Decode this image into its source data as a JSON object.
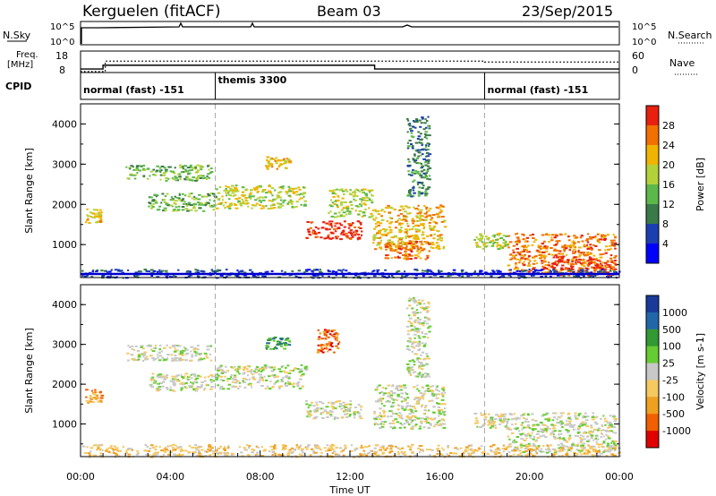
{
  "header": {
    "station": "Kerguelen (fitACF)",
    "beam": "Beam 03",
    "date": "23/Sep/2015"
  },
  "top_panels": {
    "nsky_label": "N.Sky",
    "nsky_ticks": [
      "10^5",
      "10^0"
    ],
    "nsearch_label": "N.Search",
    "nsearch_ticks": [
      "10^5",
      "10^0"
    ],
    "freq_label": "Freq.",
    "freq_unit": "[MHz]",
    "freq_ticks": [
      "18",
      "8"
    ],
    "nave_label": "Nave",
    "nave_ticks": [
      "60",
      "0"
    ],
    "cpid_label": "CPID",
    "modes": [
      {
        "text": "normal (fast) -151",
        "start_h": 0
      },
      {
        "text": "themis 3300",
        "start_h": 6
      },
      {
        "text": "normal (fast) -151",
        "start_h": 18
      }
    ],
    "freq_steps": [
      [
        0,
        8.6
      ],
      [
        1.0,
        8.6
      ],
      [
        1.0,
        11.2
      ],
      [
        13.1,
        11.2
      ],
      [
        13.1,
        8.6
      ],
      [
        24,
        8.6
      ]
    ],
    "nave_steps": [
      [
        0,
        0
      ],
      [
        1.1,
        0
      ],
      [
        1.1,
        35
      ],
      [
        18.0,
        35
      ],
      [
        18.0,
        32
      ],
      [
        24,
        32
      ]
    ]
  },
  "chart_data": [
    {
      "type": "heatmap",
      "name": "power",
      "xlabel": "",
      "ylabel": "Slant Range [km]",
      "xlim": [
        0,
        24
      ],
      "ylim": [
        180,
        4500
      ],
      "yticks": [
        1000,
        2000,
        3000,
        4000
      ],
      "colorbar": {
        "label": "Power [dB]",
        "ticks": [
          "28",
          "24",
          "20",
          "16",
          "12",
          "8",
          "4"
        ],
        "colors": [
          "#0000ff",
          "#1b3fb0",
          "#3a7a48",
          "#5cb84a",
          "#b3d23a",
          "#f0b400",
          "#f07000",
          "#e82010"
        ]
      },
      "regions": [
        {
          "t": [
            0.2,
            0.9
          ],
          "r": [
            1550,
            1900
          ],
          "level": 5
        },
        {
          "t": [
            2.0,
            5.8
          ],
          "r": [
            2600,
            3000
          ],
          "level": 3
        },
        {
          "t": [
            3.0,
            6.0
          ],
          "r": [
            1850,
            2300
          ],
          "level": 3
        },
        {
          "t": [
            6.0,
            10.0
          ],
          "r": [
            1900,
            2500
          ],
          "level": 4
        },
        {
          "t": [
            8.2,
            9.3
          ],
          "r": [
            2900,
            3200
          ],
          "level": 5
        },
        {
          "t": [
            10.0,
            12.5
          ],
          "r": [
            1150,
            1600
          ],
          "level": 7
        },
        {
          "t": [
            11.0,
            13.0
          ],
          "r": [
            1700,
            2400
          ],
          "level": 4
        },
        {
          "t": [
            13.0,
            16.2
          ],
          "r": [
            900,
            2000
          ],
          "level": 5
        },
        {
          "t": [
            13.5,
            15.5
          ],
          "r": [
            650,
            1100
          ],
          "level": 6
        },
        {
          "t": [
            14.5,
            15.5
          ],
          "r": [
            2200,
            4200
          ],
          "level": 2
        },
        {
          "t": [
            17.5,
            19.0
          ],
          "r": [
            900,
            1300
          ],
          "level": 4
        },
        {
          "t": [
            19.0,
            23.8
          ],
          "r": [
            300,
            1300
          ],
          "level": 6
        },
        {
          "t": [
            21.0,
            23.8
          ],
          "r": [
            250,
            650
          ],
          "level": 7
        },
        {
          "t": [
            0.0,
            24.0
          ],
          "r": [
            190,
            400
          ],
          "level": 1
        }
      ]
    },
    {
      "type": "heatmap",
      "name": "velocity",
      "xlabel": "Time UT",
      "ylabel": "Slant Range [km]",
      "xlim": [
        0,
        24
      ],
      "ylim": [
        180,
        4500
      ],
      "yticks": [
        1000,
        2000,
        3000,
        4000
      ],
      "xticks": [
        "00:00",
        "04:00",
        "08:00",
        "12:00",
        "16:00",
        "20:00",
        "00:00"
      ],
      "colorbar": {
        "label": "Velocity [m s-1]",
        "ticks": [
          "1000",
          "500",
          "100",
          "25",
          "-25",
          "-100",
          "-500",
          "-1000"
        ],
        "colors": [
          "#e00000",
          "#f06000",
          "#f0a020",
          "#f5c860",
          "#c8c8c8",
          "#66cc33",
          "#339933",
          "#2266aa",
          "#1a3a9a"
        ]
      },
      "regions": [
        {
          "t": [
            0.2,
            0.9
          ],
          "r": [
            1550,
            1900
          ],
          "level": 2
        },
        {
          "t": [
            2.0,
            5.8
          ],
          "r": [
            2600,
            3000
          ],
          "level": 4
        },
        {
          "t": [
            3.0,
            6.0
          ],
          "r": [
            1850,
            2300
          ],
          "level": 4
        },
        {
          "t": [
            6.0,
            10.0
          ],
          "r": [
            1900,
            2500
          ],
          "level": 4
        },
        {
          "t": [
            8.2,
            9.3
          ],
          "r": [
            2900,
            3200
          ],
          "level": 6
        },
        {
          "t": [
            10.0,
            12.5
          ],
          "r": [
            1150,
            1600
          ],
          "level": 4
        },
        {
          "t": [
            10.5,
            11.5
          ],
          "r": [
            2800,
            3400
          ],
          "level": 1
        },
        {
          "t": [
            13.0,
            16.2
          ],
          "r": [
            900,
            2000
          ],
          "level": 4
        },
        {
          "t": [
            14.5,
            15.5
          ],
          "r": [
            2200,
            4200
          ],
          "level": 4
        },
        {
          "t": [
            17.5,
            19.0
          ],
          "r": [
            900,
            1300
          ],
          "level": 4
        },
        {
          "t": [
            19.0,
            23.8
          ],
          "r": [
            300,
            1300
          ],
          "level": 4
        },
        {
          "t": [
            0.0,
            24.0
          ],
          "r": [
            190,
            500
          ],
          "level": 3
        }
      ]
    }
  ]
}
